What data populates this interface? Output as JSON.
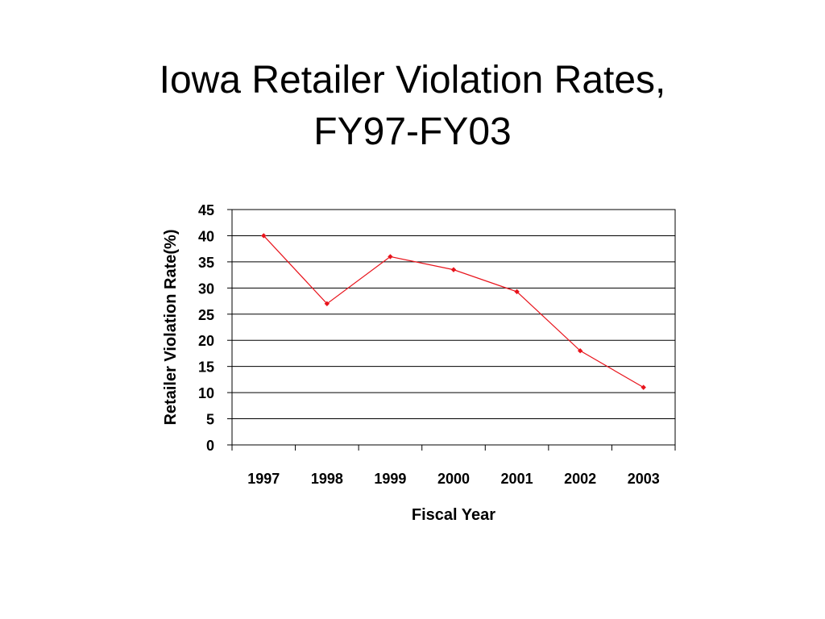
{
  "slide": {
    "title_line1": "Iowa Retailer Violation Rates,",
    "title_line2": "FY97-FY03"
  },
  "chart_data": {
    "type": "line",
    "categories": [
      "1997",
      "1998",
      "1999",
      "2000",
      "2001",
      "2002",
      "2003"
    ],
    "series": [
      {
        "values": [
          40,
          27,
          36,
          33.5,
          29.3,
          18,
          11
        ]
      }
    ],
    "xlabel": "Fiscal Year",
    "ylabel": "Retailer Violation Rate(%)",
    "ylim": [
      0,
      45
    ],
    "ytick_step": 5,
    "grid": true,
    "legend": "none",
    "colors": {
      "line": "#e8141c",
      "marker": "#e8141c",
      "grid": "#000000",
      "axis": "#000000"
    }
  }
}
